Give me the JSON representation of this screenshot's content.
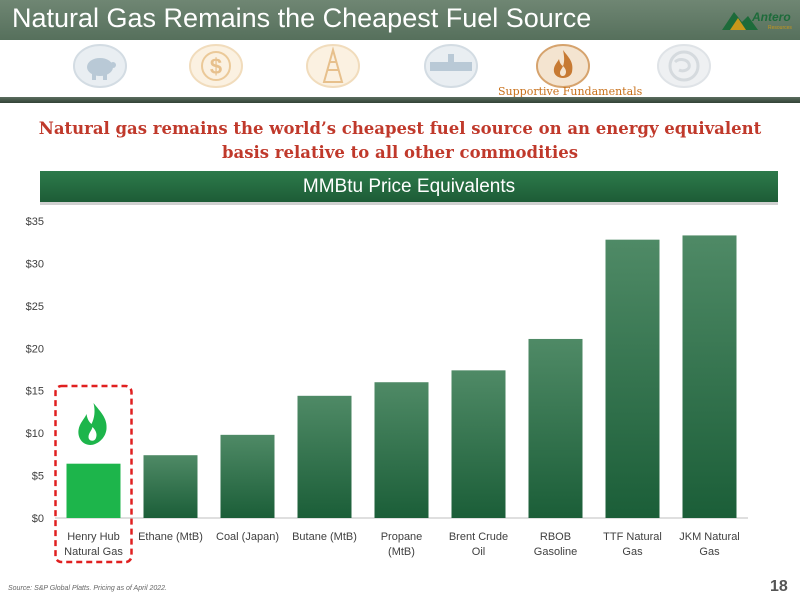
{
  "header": {
    "title": "Natural Gas Remains the Cheapest Fuel Source",
    "logo_text": "Antero",
    "logo_subtext": "Resources"
  },
  "nav": {
    "icons": [
      {
        "name": "piggy-bank-icon",
        "active": false
      },
      {
        "name": "dollar-icon",
        "active": false
      },
      {
        "name": "oil-rig-icon",
        "active": false
      },
      {
        "name": "pipeline-icon",
        "active": false
      },
      {
        "name": "flame-icon",
        "active": true
      },
      {
        "name": "globe-icon",
        "active": false
      }
    ],
    "active_label": "Supportive Fundamentals"
  },
  "headline": "Natural gas remains the world’s cheapest fuel source on an energy equivalent basis relative to all other commodities",
  "chart_banner": "MMBtu Price Equivalents",
  "colors": {
    "bar_dark": "#1b5e38",
    "bar_light": "#4f8a66",
    "highlight_bar": "#1db54b",
    "highlight_border": "#e02020",
    "headline": "#c0392b",
    "nav_active": "#c8701a"
  },
  "chart_data": {
    "type": "bar",
    "title": "MMBtu Price Equivalents",
    "categories": [
      [
        "Henry Hub",
        "Natural Gas"
      ],
      [
        "Ethane (MtB)"
      ],
      [
        "Coal (Japan)"
      ],
      [
        "Butane (MtB)"
      ],
      [
        "Propane",
        "(MtB)"
      ],
      [
        "Brent Crude",
        "Oil"
      ],
      [
        "RBOB",
        "Gasoline"
      ],
      [
        "TTF Natural",
        "Gas"
      ],
      [
        "JKM Natural",
        "Gas"
      ]
    ],
    "values": [
      6.4,
      7.4,
      9.8,
      14.4,
      16.0,
      17.4,
      21.1,
      32.8,
      33.3
    ],
    "ylim": [
      0,
      35
    ],
    "yticks": [
      0,
      5,
      10,
      15,
      20,
      25,
      30,
      35
    ],
    "ytick_labels": [
      "$0",
      "$5",
      "$10",
      "$15",
      "$20",
      "$25",
      "$30",
      "$35"
    ],
    "highlight_index": 0,
    "highlight_icon": "flame-icon",
    "grid": false,
    "legend": "none",
    "xlabel": "",
    "ylabel": ""
  },
  "footer": {
    "source": "Source: S&P Global Platts. Pricing as of April 2022.",
    "page_number": "18"
  }
}
